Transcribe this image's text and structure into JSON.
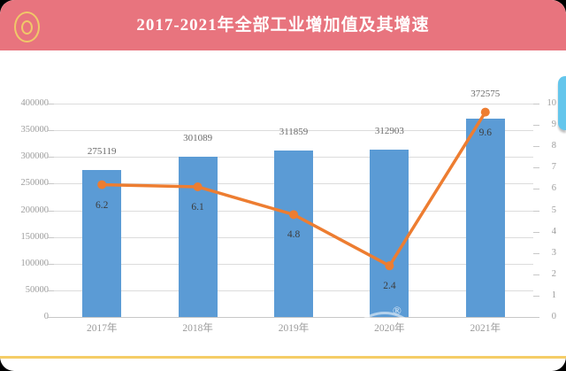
{
  "header": {
    "title": "2017-2021年全部工业增加值及其增速",
    "icon": "concentric-circles-icon"
  },
  "colors": {
    "header_bg": "#E8747E",
    "icon_gold": "#F0C869",
    "bar": "#5B9BD5",
    "line": "#ED7D31",
    "grid": "#DCDCDC",
    "axis_line": "#C8C8C8",
    "axis_text": "#9C9C9C",
    "bar_label_text": "#6A6A6A",
    "line_label_text": "#3D3D3D",
    "side_tab": "#64C6EC",
    "bottom_accent": "#F5CD67",
    "card_bg": "#FFFFFF"
  },
  "watermark": {
    "symbol": "®"
  },
  "chart_data": {
    "type": "bar",
    "subtype": "combo-bar-line",
    "title": "2017-2021年全部工业增加值及其增速",
    "categories": [
      "2017年",
      "2018年",
      "2019年",
      "2020年",
      "2021年"
    ],
    "series": [
      {
        "name": "全部工业增加值",
        "type": "bar",
        "axis": "left",
        "values": [
          275119,
          301089,
          311859,
          312903,
          372575
        ],
        "color": "#5B9BD5"
      },
      {
        "name": "增速",
        "type": "line",
        "axis": "right",
        "values": [
          6.2,
          6.1,
          4.8,
          2.4,
          9.6
        ],
        "color": "#ED7D31"
      }
    ],
    "left_axis": {
      "min": 0,
      "max": 400000,
      "step": 50000,
      "tick_labels": [
        "0",
        "50000",
        "100000",
        "150000",
        "200000",
        "250000",
        "300000",
        "350000",
        "400000"
      ]
    },
    "right_axis": {
      "min": 0,
      "max": 10,
      "step": 1,
      "tick_labels": [
        "0",
        "1",
        "2",
        "3",
        "4",
        "5",
        "6",
        "7",
        "8",
        "9",
        "10"
      ]
    },
    "grid": true,
    "legend": false,
    "data_labels": true
  }
}
